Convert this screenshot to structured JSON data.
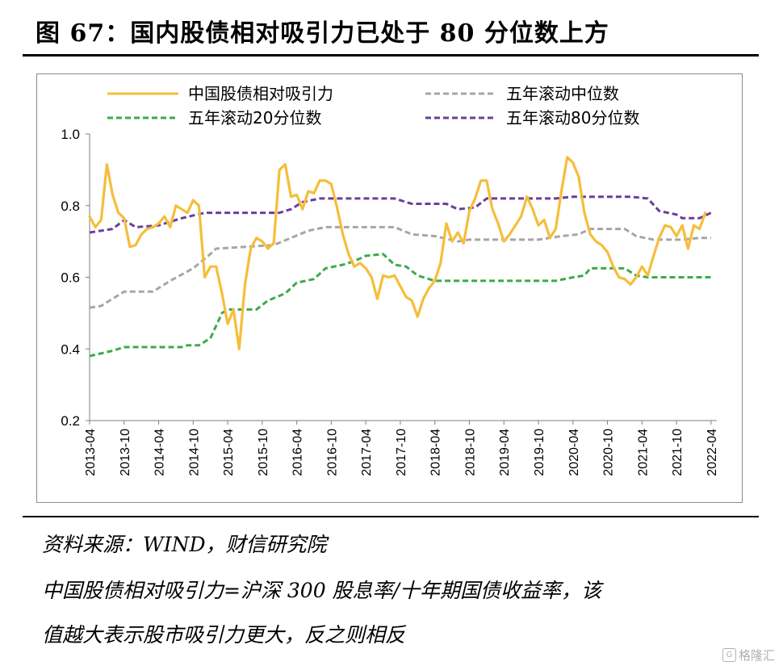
{
  "page": {
    "title": "图 67：国内股债相对吸引力已处于 80 分位数上方",
    "source": "资料来源：WIND，财信研究院",
    "footnote_line1": "中国股债相对吸引力=沪深 300 股息率/十年期国债收益率，该",
    "footnote_line2": "值越大表示股市吸引力更大，反之则相反",
    "watermark": "格隆汇",
    "watermark_icon": "G"
  },
  "colors": {
    "ratio": "#F5BE3A",
    "median": "#A6A6A6",
    "p20": "#3DAA4B",
    "p80": "#6A3F9A",
    "axis": "#7f7f7f"
  },
  "chart_data": {
    "type": "line",
    "ylim": [
      0.2,
      1.0
    ],
    "yticks": [
      "0.2",
      "0.4",
      "0.6",
      "0.8",
      "1.0"
    ],
    "xlim": [
      "2013-04",
      "2022-05"
    ],
    "xticks": [
      "2013-04",
      "2013-10",
      "2014-04",
      "2014-10",
      "2015-04",
      "2015-10",
      "2016-04",
      "2016-10",
      "2017-04",
      "2017-10",
      "2018-04",
      "2018-10",
      "2019-04",
      "2019-10",
      "2020-04",
      "2020-10",
      "2021-04",
      "2021-10",
      "2022-04"
    ],
    "legend": "top, two columns",
    "series": [
      {
        "name": "中国股债相对吸引力",
        "style": "solid",
        "points": [
          [
            "2013-04",
            0.77
          ],
          [
            "2013-05",
            0.74
          ],
          [
            "2013-06",
            0.76
          ],
          [
            "2013-07",
            0.915
          ],
          [
            "2013-08",
            0.83
          ],
          [
            "2013-09",
            0.78
          ],
          [
            "2013-10",
            0.765
          ],
          [
            "2013-11",
            0.685
          ],
          [
            "2013-12",
            0.69
          ],
          [
            "2014-01",
            0.72
          ],
          [
            "2014-02",
            0.735
          ],
          [
            "2014-03",
            0.74
          ],
          [
            "2014-04",
            0.75
          ],
          [
            "2014-05",
            0.77
          ],
          [
            "2014-06",
            0.74
          ],
          [
            "2014-07",
            0.8
          ],
          [
            "2014-08",
            0.79
          ],
          [
            "2014-09",
            0.78
          ],
          [
            "2014-10",
            0.815
          ],
          [
            "2014-11",
            0.8
          ],
          [
            "2014-12",
            0.6
          ],
          [
            "2015-01",
            0.63
          ],
          [
            "2015-02",
            0.63
          ],
          [
            "2015-03",
            0.555
          ],
          [
            "2015-04",
            0.47
          ],
          [
            "2015-05",
            0.51
          ],
          [
            "2015-06",
            0.4
          ],
          [
            "2015-07",
            0.58
          ],
          [
            "2015-08",
            0.68
          ],
          [
            "2015-09",
            0.71
          ],
          [
            "2015-10",
            0.7
          ],
          [
            "2015-11",
            0.68
          ],
          [
            "2015-12",
            0.695
          ],
          [
            "2016-01",
            0.9
          ],
          [
            "2016-02",
            0.915
          ],
          [
            "2016-03",
            0.825
          ],
          [
            "2016-04",
            0.83
          ],
          [
            "2016-05",
            0.79
          ],
          [
            "2016-06",
            0.84
          ],
          [
            "2016-07",
            0.835
          ],
          [
            "2016-08",
            0.87
          ],
          [
            "2016-09",
            0.87
          ],
          [
            "2016-10",
            0.86
          ],
          [
            "2016-11",
            0.795
          ],
          [
            "2016-12",
            0.72
          ],
          [
            "2017-01",
            0.665
          ],
          [
            "2017-02",
            0.63
          ],
          [
            "2017-03",
            0.64
          ],
          [
            "2017-04",
            0.625
          ],
          [
            "2017-05",
            0.6
          ],
          [
            "2017-06",
            0.54
          ],
          [
            "2017-07",
            0.605
          ],
          [
            "2017-08",
            0.6
          ],
          [
            "2017-09",
            0.605
          ],
          [
            "2017-10",
            0.575
          ],
          [
            "2017-11",
            0.545
          ],
          [
            "2017-12",
            0.535
          ],
          [
            "2018-01",
            0.49
          ],
          [
            "2018-02",
            0.54
          ],
          [
            "2018-03",
            0.57
          ],
          [
            "2018-04",
            0.59
          ],
          [
            "2018-05",
            0.64
          ],
          [
            "2018-06",
            0.75
          ],
          [
            "2018-07",
            0.7
          ],
          [
            "2018-08",
            0.725
          ],
          [
            "2018-09",
            0.695
          ],
          [
            "2018-10",
            0.785
          ],
          [
            "2018-11",
            0.82
          ],
          [
            "2018-12",
            0.87
          ],
          [
            "2019-01",
            0.87
          ],
          [
            "2019-02",
            0.79
          ],
          [
            "2019-03",
            0.75
          ],
          [
            "2019-04",
            0.7
          ],
          [
            "2019-05",
            0.72
          ],
          [
            "2019-06",
            0.745
          ],
          [
            "2019-07",
            0.77
          ],
          [
            "2019-08",
            0.825
          ],
          [
            "2019-09",
            0.79
          ],
          [
            "2019-10",
            0.745
          ],
          [
            "2019-11",
            0.76
          ],
          [
            "2019-12",
            0.71
          ],
          [
            "2020-01",
            0.735
          ],
          [
            "2020-02",
            0.84
          ],
          [
            "2020-03",
            0.935
          ],
          [
            "2020-04",
            0.92
          ],
          [
            "2020-05",
            0.88
          ],
          [
            "2020-06",
            0.78
          ],
          [
            "2020-07",
            0.72
          ],
          [
            "2020-08",
            0.7
          ],
          [
            "2020-09",
            0.69
          ],
          [
            "2020-10",
            0.67
          ],
          [
            "2020-11",
            0.63
          ],
          [
            "2020-12",
            0.6
          ],
          [
            "2021-01",
            0.595
          ],
          [
            "2021-02",
            0.58
          ],
          [
            "2021-03",
            0.6
          ],
          [
            "2021-04",
            0.63
          ],
          [
            "2021-05",
            0.605
          ],
          [
            "2021-06",
            0.66
          ],
          [
            "2021-07",
            0.71
          ],
          [
            "2021-08",
            0.745
          ],
          [
            "2021-09",
            0.74
          ],
          [
            "2021-10",
            0.715
          ],
          [
            "2021-11",
            0.745
          ],
          [
            "2021-12",
            0.68
          ],
          [
            "2022-01",
            0.745
          ],
          [
            "2022-02",
            0.735
          ],
          [
            "2022-03",
            0.78
          ]
        ]
      },
      {
        "name": "五年滚动中位数",
        "style": "dashed",
        "points": [
          [
            "2013-04",
            0.515
          ],
          [
            "2013-06",
            0.52
          ],
          [
            "2013-08",
            0.54
          ],
          [
            "2013-10",
            0.56
          ],
          [
            "2014-03",
            0.56
          ],
          [
            "2014-06",
            0.59
          ],
          [
            "2014-10",
            0.625
          ],
          [
            "2015-01",
            0.665
          ],
          [
            "2015-02",
            0.68
          ],
          [
            "2015-12",
            0.69
          ],
          [
            "2016-03",
            0.71
          ],
          [
            "2016-06",
            0.73
          ],
          [
            "2016-09",
            0.74
          ],
          [
            "2017-01",
            0.74
          ],
          [
            "2017-09",
            0.74
          ],
          [
            "2017-12",
            0.72
          ],
          [
            "2018-04",
            0.715
          ],
          [
            "2018-08",
            0.7
          ],
          [
            "2018-10",
            0.705
          ],
          [
            "2019-01",
            0.705
          ],
          [
            "2019-10",
            0.705
          ],
          [
            "2020-02",
            0.715
          ],
          [
            "2020-05",
            0.72
          ],
          [
            "2020-07",
            0.735
          ],
          [
            "2021-01",
            0.735
          ],
          [
            "2021-03",
            0.715
          ],
          [
            "2021-06",
            0.705
          ],
          [
            "2021-11",
            0.705
          ],
          [
            "2022-02",
            0.71
          ],
          [
            "2022-04",
            0.71
          ]
        ]
      },
      {
        "name": "五年滚动20分位数",
        "style": "dashed",
        "points": [
          [
            "2013-04",
            0.38
          ],
          [
            "2013-08",
            0.395
          ],
          [
            "2013-10",
            0.405
          ],
          [
            "2014-08",
            0.405
          ],
          [
            "2014-09",
            0.41
          ],
          [
            "2014-11",
            0.41
          ],
          [
            "2015-01",
            0.43
          ],
          [
            "2015-03",
            0.5
          ],
          [
            "2015-04",
            0.51
          ],
          [
            "2015-06",
            0.51
          ],
          [
            "2015-09",
            0.51
          ],
          [
            "2015-11",
            0.535
          ],
          [
            "2016-02",
            0.555
          ],
          [
            "2016-04",
            0.585
          ],
          [
            "2016-07",
            0.595
          ],
          [
            "2016-09",
            0.625
          ],
          [
            "2016-12",
            0.635
          ],
          [
            "2017-02",
            0.645
          ],
          [
            "2017-04",
            0.66
          ],
          [
            "2017-07",
            0.665
          ],
          [
            "2017-09",
            0.635
          ],
          [
            "2017-11",
            0.63
          ],
          [
            "2018-01",
            0.605
          ],
          [
            "2018-04",
            0.59
          ],
          [
            "2020-01",
            0.59
          ],
          [
            "2020-04",
            0.6
          ],
          [
            "2020-06",
            0.605
          ],
          [
            "2020-07",
            0.625
          ],
          [
            "2021-01",
            0.625
          ],
          [
            "2021-03",
            0.605
          ],
          [
            "2021-05",
            0.6
          ],
          [
            "2022-04",
            0.6
          ]
        ]
      },
      {
        "name": "五年滚动80分位数",
        "style": "dashed",
        "points": [
          [
            "2013-04",
            0.725
          ],
          [
            "2013-08",
            0.735
          ],
          [
            "2013-10",
            0.76
          ],
          [
            "2013-12",
            0.74
          ],
          [
            "2014-04",
            0.745
          ],
          [
            "2014-08",
            0.765
          ],
          [
            "2014-12",
            0.78
          ],
          [
            "2016-01",
            0.78
          ],
          [
            "2016-03",
            0.79
          ],
          [
            "2016-05",
            0.81
          ],
          [
            "2016-08",
            0.82
          ],
          [
            "2017-09",
            0.82
          ],
          [
            "2017-12",
            0.805
          ],
          [
            "2018-06",
            0.805
          ],
          [
            "2018-08",
            0.79
          ],
          [
            "2018-11",
            0.795
          ],
          [
            "2019-01",
            0.82
          ],
          [
            "2020-01",
            0.82
          ],
          [
            "2020-04",
            0.825
          ],
          [
            "2021-02",
            0.825
          ],
          [
            "2021-05",
            0.82
          ],
          [
            "2021-07",
            0.785
          ],
          [
            "2021-10",
            0.775
          ],
          [
            "2021-11",
            0.765
          ],
          [
            "2022-02",
            0.765
          ],
          [
            "2022-04",
            0.78
          ]
        ]
      }
    ]
  }
}
